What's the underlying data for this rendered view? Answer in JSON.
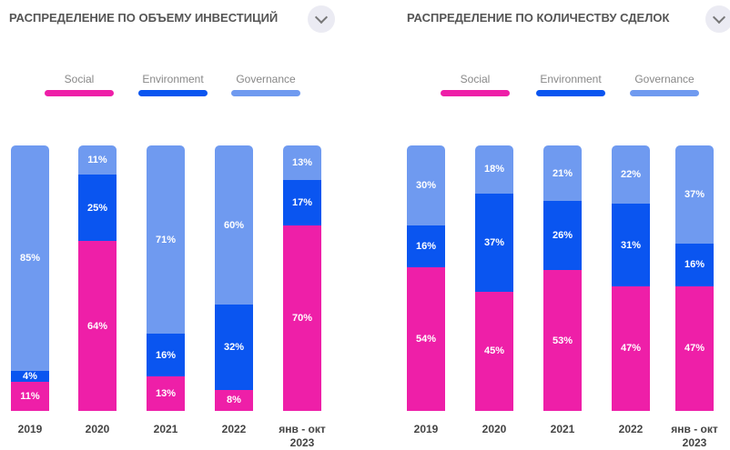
{
  "chart_data": [
    {
      "type": "bar",
      "stacked": true,
      "title": "РАСПРЕДЕЛЕНИЕ ПО ОБЪЕМУ ИНВЕСТИЦИЙ",
      "categories": [
        "2019",
        "2020",
        "2021",
        "2022",
        "янв - окт\n2023"
      ],
      "ylim": [
        0,
        100
      ],
      "series": [
        {
          "name": "Social",
          "color": "#ee1fa8",
          "values": [
            11,
            64,
            13,
            8,
            70
          ],
          "value_labels": [
            "11%",
            "64%",
            "13%",
            "8%",
            "70%"
          ]
        },
        {
          "name": "Environment",
          "color": "#0a55f0",
          "values": [
            4,
            25,
            16,
            32,
            17
          ],
          "value_labels": [
            "4%",
            "25%",
            "16%",
            "32%",
            "17%"
          ]
        },
        {
          "name": "Governance",
          "color": "#6f9af0",
          "values": [
            85,
            11,
            71,
            60,
            13
          ],
          "value_labels": [
            "85%",
            "11%",
            "71%",
            "60%",
            "13%"
          ]
        }
      ]
    },
    {
      "type": "bar",
      "stacked": true,
      "title": "РАСПРЕДЕЛЕНИЕ ПО КОЛИЧЕСТВУ СДЕЛОК",
      "categories": [
        "2019",
        "2020",
        "2021",
        "2022",
        "янв - окт\n2023"
      ],
      "ylim": [
        0,
        100
      ],
      "series": [
        {
          "name": "Social",
          "color": "#ee1fa8",
          "values": [
            54,
            45,
            53,
            47,
            47
          ],
          "value_labels": [
            "54%",
            "45%",
            "53%",
            "47%",
            "47%"
          ]
        },
        {
          "name": "Environment",
          "color": "#0a55f0",
          "values": [
            16,
            37,
            26,
            31,
            16
          ],
          "value_labels": [
            "16%",
            "37%",
            "26%",
            "31%",
            "16%"
          ]
        },
        {
          "name": "Governance",
          "color": "#6f9af0",
          "values": [
            30,
            18,
            21,
            22,
            37
          ],
          "value_labels": [
            "30%",
            "18%",
            "21%",
            "22%",
            "37%"
          ]
        }
      ]
    }
  ]
}
